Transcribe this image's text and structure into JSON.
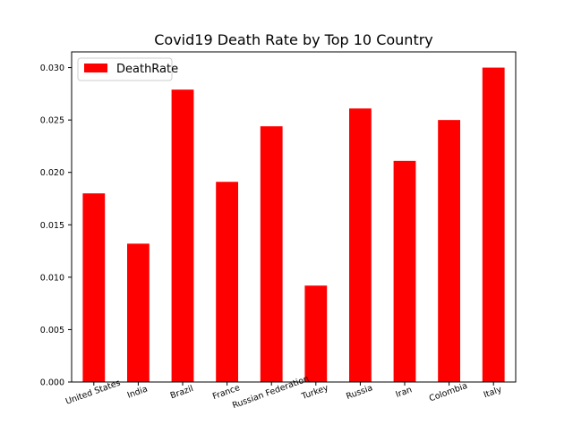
{
  "chart_data": {
    "type": "bar",
    "title": "Covid19 Death Rate by Top 10 Country",
    "xlabel": "",
    "ylabel": "",
    "categories": [
      "United States",
      "India",
      "Brazil",
      "France",
      "Russian Federation",
      "Turkey",
      "Russia",
      "Iran",
      "Colombia",
      "Italy"
    ],
    "series": [
      {
        "name": "DeathRate",
        "values": [
          0.018,
          0.0132,
          0.0279,
          0.0191,
          0.0244,
          0.0092,
          0.0261,
          0.0211,
          0.025,
          0.03
        ]
      }
    ],
    "ylim": [
      0,
      0.0315
    ],
    "yticks": [
      0.0,
      0.005,
      0.01,
      0.015,
      0.02,
      0.025,
      0.03
    ],
    "ytick_labels": [
      "0.000",
      "0.005",
      "0.010",
      "0.015",
      "0.020",
      "0.025",
      "0.030"
    ],
    "grid": false,
    "legend_position": "top-left",
    "colors": {
      "bar": "#ff0000",
      "axes": "#000000",
      "background": "#ffffff"
    }
  }
}
